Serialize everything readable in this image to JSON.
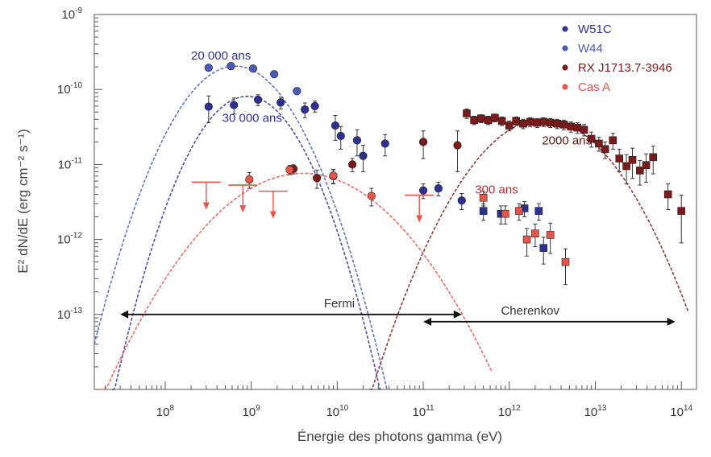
{
  "chart_data": {
    "type": "scatter",
    "x_scale": "log",
    "y_scale": "log",
    "xlim": [
      15000000,
      150000000000000
    ],
    "ylim": [
      1e-14,
      1e-09
    ],
    "xlabel": "Énergie des photons gamma (eV)",
    "ylabel": "E² dN/dE (erg cm⁻² s⁻¹)",
    "x_ticks": [
      {
        "value": 100000000,
        "base": "10",
        "exp": "8"
      },
      {
        "value": 1000000000,
        "base": "10",
        "exp": "9"
      },
      {
        "value": 10000000000,
        "base": "10",
        "exp": "10"
      },
      {
        "value": 100000000000,
        "base": "10",
        "exp": "11"
      },
      {
        "value": 1000000000000,
        "base": "10",
        "exp": "12"
      },
      {
        "value": 10000000000000,
        "base": "10",
        "exp": "13"
      },
      {
        "value": 100000000000000,
        "base": "10",
        "exp": "14"
      }
    ],
    "y_ticks": [
      {
        "value": 1e-09,
        "base": "10",
        "exp": "-9"
      },
      {
        "value": 1e-10,
        "base": "10",
        "exp": "-10"
      },
      {
        "value": 1e-11,
        "base": "10",
        "exp": "-11"
      },
      {
        "value": 1e-12,
        "base": "10",
        "exp": "-12"
      },
      {
        "value": 1e-13,
        "base": "10",
        "exp": "-13"
      }
    ],
    "legend": {
      "position": "top-right"
    },
    "series": [
      {
        "name": "W51C",
        "color": "#2e3192",
        "points": [
          [
            320000000.0,
            5.9e-11,
            2.3e-11
          ],
          [
            630000000.0,
            6.2e-11,
            1.5e-11
          ],
          [
            1200000000.0,
            7.3e-11,
            1.2e-11
          ],
          [
            2200000000.0,
            6.7e-11,
            1.2e-11
          ],
          [
            4200000000.0,
            5.4e-11,
            1.2e-11
          ],
          [
            5500000000.0,
            6e-11,
            1e-11
          ],
          [
            9500000000.0,
            3.3e-11,
            1.2e-11
          ],
          [
            11000000000.0,
            2.4e-11,
            8e-12
          ],
          [
            17000000000.0,
            2.1e-11,
            8e-12
          ],
          [
            20000000000.0,
            1.3e-11,
            5e-12
          ],
          [
            36000000000.0,
            1.9e-11,
            6e-12
          ],
          [
            100000000000.0,
            4.5e-12,
            1e-12
          ],
          [
            150000000000.0,
            4.8e-12,
            1e-12
          ],
          [
            280000000000.0,
            3.3e-12,
            8e-13
          ],
          [
            500000000000.0,
            2.4e-12,
            6e-13
          ],
          [
            800000000000.0,
            2.2e-12,
            6e-13
          ],
          [
            1500000000000.0,
            2.6e-12,
            6e-13
          ],
          [
            2200000000000.0,
            2.4e-12,
            6e-13
          ],
          [
            2500000000000.0,
            7.7e-13,
            3e-13
          ]
        ],
        "curve": {
          "peak_x": 900000000.0,
          "peak_y": 8.1e-11,
          "width": 0.78,
          "x_range": [
            15000000.0,
            100000000000.0
          ]
        }
      },
      {
        "name": "W44",
        "color": "#4a5bb8",
        "points": [
          [
            320000000.0,
            1.95e-10,
            0
          ],
          [
            580000000.0,
            2.05e-10,
            0
          ],
          [
            1050000000.0,
            1.9e-10,
            0
          ],
          [
            1850000000.0,
            1.6e-10,
            0
          ],
          [
            3400000000.0,
            9.5e-11,
            0
          ]
        ],
        "curve": {
          "peak_x": 650000000.0,
          "peak_y": 2.05e-10,
          "width": 0.85,
          "x_range": [
            15000000.0,
            1000000000000.0
          ]
        }
      },
      {
        "name": "RX J1713.7-3946",
        "color": "#7a1a1a",
        "points": [
          [
            3100000000.0,
            8.7e-12,
            1.2e-12
          ],
          [
            5800000000.0,
            6.6e-12,
            1.8e-12
          ],
          [
            9000000000.0,
            7e-12,
            1.5e-12
          ],
          [
            15000000000.0,
            1e-11,
            2e-12
          ],
          [
            100000000000.0,
            2e-11,
            8e-12
          ],
          [
            250000000000.0,
            1.8e-11,
            1e-11
          ],
          [
            320000000000.0,
            4.8e-11,
            7e-12
          ],
          [
            390000000000.0,
            3.9e-11,
            5e-12
          ],
          [
            470000000000.0,
            4.1e-11,
            5e-12
          ],
          [
            570000000000.0,
            3.9e-11,
            5e-12
          ],
          [
            680000000000.0,
            4.2e-11,
            5e-12
          ],
          [
            820000000000.0,
            3.8e-11,
            5e-12
          ],
          [
            1000000000000.0,
            3.3e-11,
            5e-12
          ],
          [
            1200000000000.0,
            3.8e-11,
            5e-12
          ],
          [
            1450000000000.0,
            3.5e-11,
            5e-12
          ],
          [
            1750000000000.0,
            3.7e-11,
            5e-12
          ],
          [
            2100000000000.0,
            3.6e-11,
            5e-12
          ],
          [
            2500000000000.0,
            3.7e-11,
            5e-12
          ],
          [
            3000000000000.0,
            3.6e-11,
            5e-12
          ],
          [
            3600000000000.0,
            3.5e-11,
            5e-12
          ],
          [
            4300000000000.0,
            3.4e-11,
            5e-12
          ],
          [
            5200000000000.0,
            3.2e-11,
            5e-12
          ],
          [
            6200000000000.0,
            3.1e-11,
            5e-12
          ],
          [
            7400000000000.0,
            2.9e-11,
            5e-12
          ],
          [
            9000000000000.0,
            2.2e-11,
            5e-12
          ],
          [
            11000000000000.0,
            1.9e-11,
            4e-12
          ],
          [
            13000000000000.0,
            1.6e-11,
            4e-12
          ],
          [
            16000000000000.0,
            2.1e-11,
            5e-12
          ],
          [
            19000000000000.0,
            1.2e-11,
            4e-12
          ],
          [
            23000000000000.0,
            9.5e-12,
            4e-12
          ],
          [
            27000000000000.0,
            1.15e-11,
            5e-12
          ],
          [
            33000000000000.0,
            8.3e-12,
            3e-12
          ],
          [
            39000000000000.0,
            9.8e-12,
            4e-12
          ],
          [
            47000000000000.0,
            1.25e-11,
            5e-12
          ],
          [
            70000000000000.0,
            4e-12,
            1.5e-12
          ],
          [
            100000000000000.0,
            2.4e-12,
            1.5e-12
          ]
        ],
        "curve": {
          "peak_x": 2500000000000.0,
          "peak_y": 4e-11,
          "width": 1.05,
          "x_range": [
            46000000.0,
            120000000000000.0
          ]
        }
      },
      {
        "name": "Cas A",
        "color": "#e8534a",
        "points": [
          [
            950000000.0,
            6.3e-12,
            1.5e-12
          ],
          [
            2800000000.0,
            8.5e-12,
            1.2e-12
          ],
          [
            9000000000.0,
            7.1e-12,
            1.5e-12
          ],
          [
            25000000000.0,
            3.8e-12,
            1e-12
          ],
          [
            500000000000.0,
            3.6e-12,
            8e-13
          ],
          [
            900000000000.0,
            2.2e-12,
            6e-13
          ],
          [
            1300000000000.0,
            2.4e-12,
            6e-13
          ],
          [
            1600000000000.0,
            1e-12,
            4e-13
          ],
          [
            2000000000000.0,
            1.2e-12,
            4e-13
          ],
          [
            3000000000000.0,
            1.15e-12,
            5e-13
          ],
          [
            4500000000000.0,
            5e-13,
            2.5e-13
          ]
        ],
        "upper_limits": [
          [
            300000000.0,
            5.8e-12
          ],
          [
            800000000.0,
            5.3e-12
          ],
          [
            1800000000.0,
            4.4e-12
          ],
          [
            90000000000.0,
            3.9e-12
          ]
        ],
        "curve": {
          "peak_x": 4000000000.0,
          "peak_y": 7.6e-12,
          "width": 1.35,
          "x_range": [
            15000000.0,
            45000000000000.0
          ]
        }
      }
    ],
    "annotations": [
      {
        "text": "20 000 ans",
        "x": 200000000.0,
        "y": 2.5e-10,
        "color": "#2e3192"
      },
      {
        "text": "30 000 ans",
        "x": 460000000.0,
        "y": 3.7e-11,
        "color": "#2e3192"
      },
      {
        "text": "2000 ans",
        "x": 2400000000000.0,
        "y": 1.85e-11,
        "color": "#5a1414"
      },
      {
        "text": "300 ans",
        "x": 400000000000.0,
        "y": 4.1e-12,
        "color": "#c0272d"
      },
      {
        "text": "Fermi",
        "x": 7000000000.0,
        "y": 1.25e-13,
        "color": "#333333"
      },
      {
        "text": "Cherenkov",
        "x": 800000000000.0,
        "y": 1e-13,
        "color": "#333333"
      }
    ],
    "ranges": [
      {
        "x1": 30000000.0,
        "x2": 280000000000.0,
        "y": 1e-13
      },
      {
        "x1": 100000000000.0,
        "x2": 85000000000000.0,
        "y": 8e-14
      }
    ]
  }
}
